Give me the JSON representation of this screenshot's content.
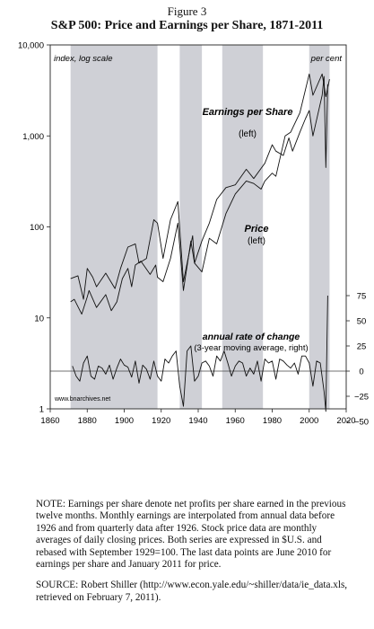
{
  "figure_label": "Figure 3",
  "chart_data": {
    "type": "line",
    "title": "S&P 500: Price and Earnings per Share, 1871-2011",
    "x_ticks": [
      "1860",
      "1880",
      "1900",
      "1920",
      "1940",
      "1960",
      "1980",
      "2000",
      "2020"
    ],
    "xlim": [
      1860,
      2020
    ],
    "y_left_ticks": [
      "10,000",
      "1,000",
      "100",
      "10",
      "1"
    ],
    "y_left_scale": "log",
    "ylim_left": [
      1,
      10000
    ],
    "y_right_ticks": [
      "75",
      "50",
      "25",
      "0",
      "−25",
      "−50"
    ],
    "ylim_right": [
      -50,
      75
    ],
    "top_left_label": "index, log scale",
    "top_right_label": "per cent",
    "shaded_periods": [
      [
        1871,
        1918
      ],
      [
        1930,
        1942
      ],
      [
        1953,
        1975
      ],
      [
        2000,
        2011
      ]
    ],
    "series": [
      {
        "name": "Earnings per Share",
        "sublabel": "(left)",
        "axis": "left",
        "x": [
          1871,
          1875,
          1878,
          1880,
          1883,
          1885,
          1890,
          1895,
          1898,
          1902,
          1906,
          1908,
          1912,
          1916,
          1918,
          1921,
          1925,
          1929,
          1932,
          1937,
          1938,
          1942,
          1946,
          1950,
          1955,
          1960,
          1966,
          1970,
          1974,
          1976,
          1980,
          1982,
          1986,
          1989,
          1991,
          1995,
          1998,
          2000,
          2002,
          2007,
          2008,
          2009,
          2010
        ],
        "y": [
          27,
          29,
          16,
          35,
          28,
          22,
          31,
          21,
          35,
          60,
          65,
          40,
          45,
          120,
          110,
          45,
          120,
          190,
          25,
          80,
          40,
          70,
          110,
          200,
          270,
          290,
          430,
          340,
          440,
          500,
          800,
          680,
          610,
          950,
          680,
          1100,
          1550,
          1900,
          1000,
          2800,
          4500,
          450,
          3700
        ]
      },
      {
        "name": "Price",
        "sublabel": "(left)",
        "axis": "left",
        "x": [
          1871,
          1873,
          1877,
          1880,
          1881,
          1885,
          1890,
          1893,
          1896,
          1899,
          1902,
          1904,
          1906,
          1909,
          1914,
          1917,
          1918,
          1921,
          1925,
          1929,
          1932,
          1936,
          1938,
          1942,
          1946,
          1950,
          1955,
          1960,
          1966,
          1970,
          1974,
          1976,
          1980,
          1982,
          1987,
          1990,
          1995,
          2000,
          2002,
          2007,
          2009,
          2011
        ],
        "y": [
          15,
          16,
          11,
          17,
          20,
          13,
          18,
          12,
          15,
          27,
          35,
          22,
          38,
          42,
          30,
          38,
          28,
          25,
          45,
          110,
          20,
          70,
          40,
          32,
          75,
          65,
          140,
          230,
          320,
          300,
          260,
          320,
          390,
          360,
          1000,
          1100,
          1800,
          4800,
          2800,
          4800,
          2700,
          4200
        ]
      },
      {
        "name": "annual rate of change",
        "sublabel": "(3-year moving average, right)",
        "axis": "right",
        "x": [
          1872,
          1874,
          1876,
          1878,
          1880,
          1882,
          1884,
          1886,
          1888,
          1890,
          1892,
          1894,
          1896,
          1898,
          1900,
          1902,
          1904,
          1906,
          1908,
          1910,
          1912,
          1914,
          1916,
          1918,
          1920,
          1922,
          1924,
          1926,
          1928,
          1930,
          1932,
          1934,
          1936,
          1938,
          1940,
          1942,
          1944,
          1946,
          1948,
          1950,
          1952,
          1954,
          1956,
          1958,
          1960,
          1962,
          1964,
          1966,
          1968,
          1970,
          1972,
          1974,
          1976,
          1978,
          1980,
          1982,
          1984,
          1986,
          1988,
          1990,
          1992,
          1994,
          1996,
          1998,
          2000,
          2002,
          2004,
          2006,
          2008,
          2009,
          2010
        ],
        "y": [
          5,
          -5,
          -10,
          8,
          15,
          -5,
          -8,
          5,
          3,
          -3,
          6,
          -8,
          3,
          12,
          6,
          4,
          -6,
          10,
          -12,
          6,
          2,
          -8,
          10,
          -5,
          -10,
          12,
          8,
          15,
          20,
          -15,
          -35,
          20,
          25,
          -10,
          -5,
          8,
          10,
          5,
          -5,
          15,
          10,
          20,
          8,
          -5,
          5,
          10,
          8,
          -5,
          3,
          -3,
          10,
          -10,
          12,
          8,
          10,
          -8,
          12,
          10,
          6,
          3,
          8,
          -3,
          15,
          15,
          8,
          -15,
          10,
          8,
          -20,
          -40,
          75
        ]
      }
    ],
    "watermark": "www.bnarchives.net"
  },
  "note": {
    "text": "NOTE: Earnings per share denote net profits per share earned in the previous twelve months. Monthly earnings are interpolated from annual data before 1926 and from quarterly data after 1926. Stock price data are monthly averages of daily closing prices. Both series are expressed in $U.S. and rebased with September 1929=100. The last data points are June 2010 for earnings per share and January 2011 for price.",
    "source": "SOURCE: Robert Shiller (http://www.econ.yale.edu/~shiller/data/ie_data.xls, retrieved on February 7, 2011)."
  }
}
